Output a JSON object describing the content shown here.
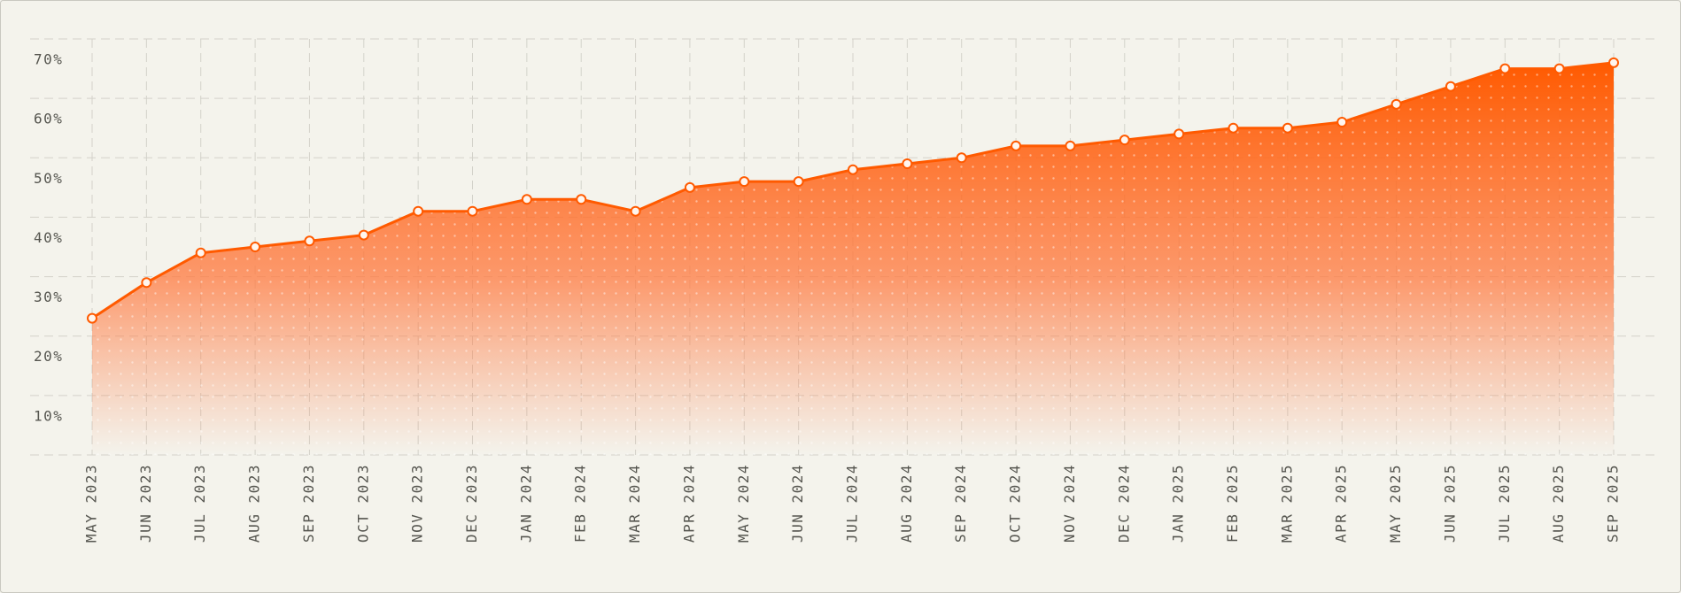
{
  "chart_data": {
    "type": "area",
    "categories": [
      "MAY 2023",
      "JUN 2023",
      "JUL 2023",
      "AUG 2023",
      "SEP 2023",
      "OCT 2023",
      "NOV 2023",
      "DEC 2023",
      "JAN 2024",
      "FEB 2024",
      "MAR 2024",
      "APR 2024",
      "MAY 2024",
      "JUN 2024",
      "JUL 2024",
      "AUG 2024",
      "SEP 2024",
      "OCT 2024",
      "NOV 2024",
      "DEC 2024",
      "JAN 2025",
      "FEB 2025",
      "MAR 2025",
      "APR 2025",
      "MAY 2025",
      "JUN 2025",
      "JUL 2025",
      "AUG 2025",
      "SEP 2025"
    ],
    "values": [
      23,
      29,
      34,
      35,
      36,
      37,
      41,
      41,
      43,
      43,
      41,
      45,
      46,
      46,
      48,
      49,
      50,
      52,
      52,
      53,
      54,
      55,
      55,
      56,
      59,
      62,
      65,
      65,
      66
    ],
    "color": "#ff5a00",
    "ylim": [
      0,
      70
    ],
    "yticks": [
      {
        "value": 10,
        "label": "10%"
      },
      {
        "value": 20,
        "label": "20%"
      },
      {
        "value": 30,
        "label": "30%"
      },
      {
        "value": 40,
        "label": "40%"
      },
      {
        "value": 50,
        "label": "50%"
      },
      {
        "value": 60,
        "label": "60%"
      },
      {
        "value": 70,
        "label": "70%"
      }
    ],
    "grid": true
  }
}
